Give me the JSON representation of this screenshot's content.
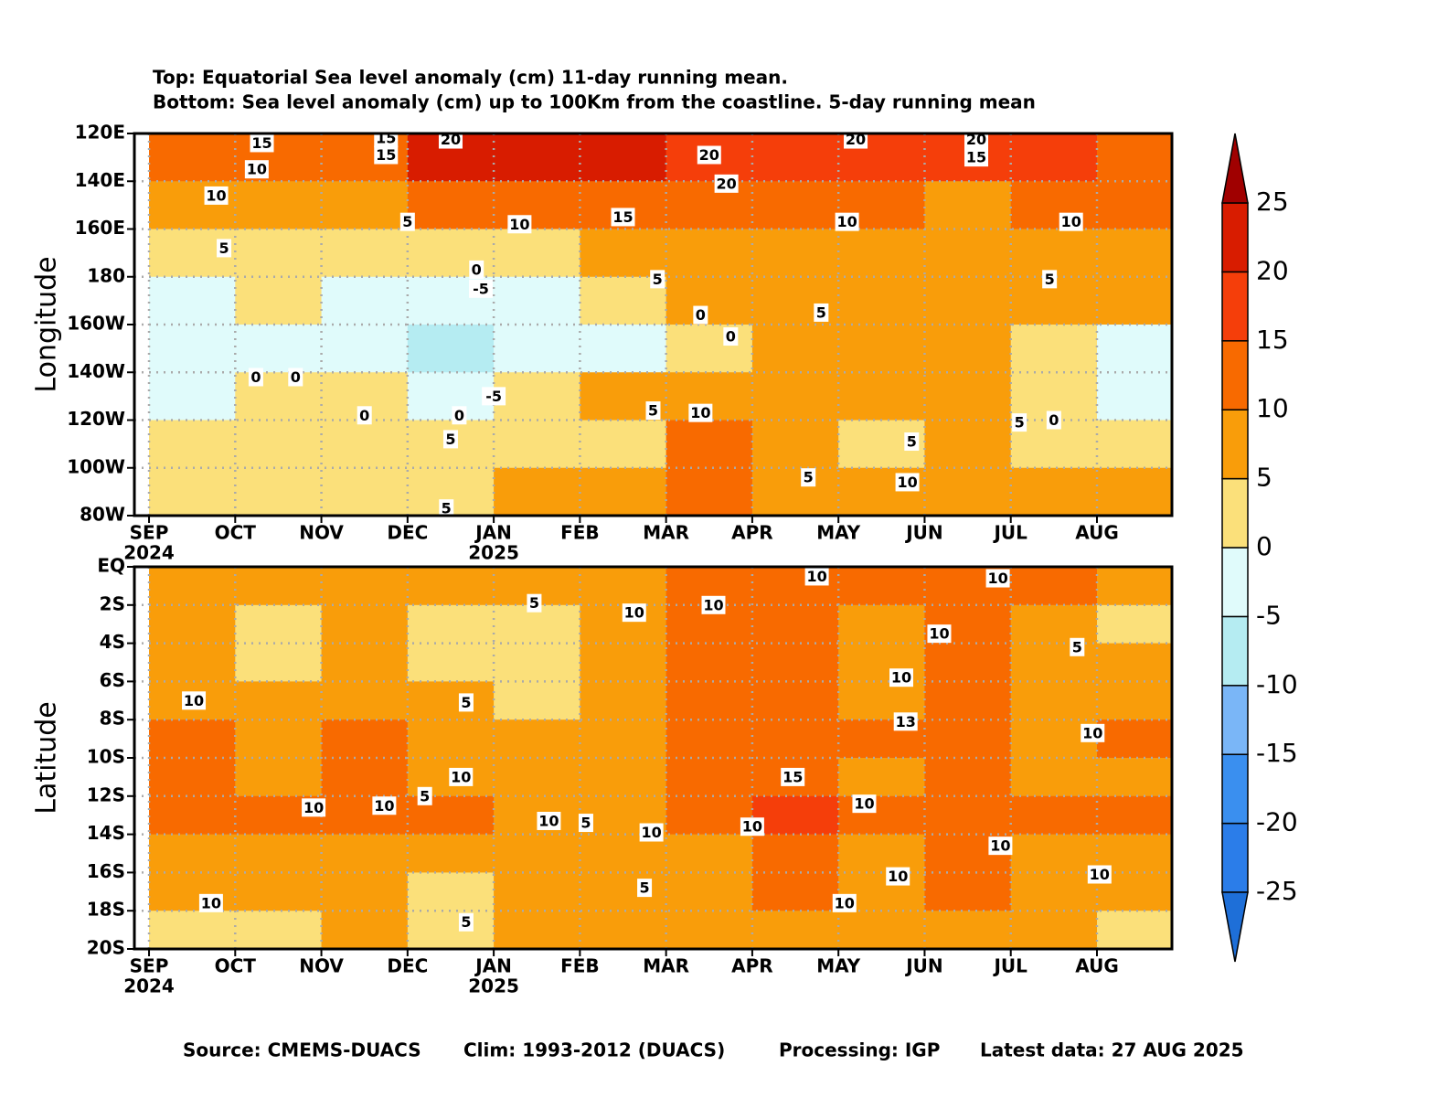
{
  "title": [
    "Top: Equatorial Sea level anomaly (cm) 11-day running mean.",
    "Bottom: Sea level anomaly (cm) up to 100Km from the coastline. 5-day running mean"
  ],
  "footer": [
    "Source: CMEMS-DUACS",
    "Clim: 1993-2012 (DUACS)",
    "Processing: IGP",
    "Latest data: 27 AUG 2025"
  ],
  "colorbar": {
    "levels": [
      -25,
      -20,
      -15,
      -10,
      -5,
      0,
      5,
      10,
      15,
      20,
      25
    ],
    "colors": [
      "#2b7de9",
      "#3a8fef",
      "#7ab6f7",
      "#b5ecf2",
      "#e0fbfb",
      "#fbe07a",
      "#f99d0a",
      "#f86a00",
      "#f53e0a",
      "#d81c00"
    ],
    "under_color": "#1e6fd8",
    "over_color": "#a00000"
  },
  "chart_data": [
    {
      "type": "heatmap",
      "ylabel": "Longitude",
      "xlim": [
        -0.17,
        11.87
      ],
      "xticks": [
        {
          "value": 0,
          "label": "SEP"
        },
        {
          "value": 1,
          "label": "OCT"
        },
        {
          "value": 2,
          "label": "NOV"
        },
        {
          "value": 3,
          "label": "DEC"
        },
        {
          "value": 4,
          "label": "JAN"
        },
        {
          "value": 5,
          "label": "FEB"
        },
        {
          "value": 6,
          "label": "MAR"
        },
        {
          "value": 7,
          "label": "APR"
        },
        {
          "value": 8,
          "label": "MAY"
        },
        {
          "value": 9,
          "label": "JUN"
        },
        {
          "value": 10,
          "label": "JUL"
        },
        {
          "value": 11,
          "label": "AUG"
        }
      ],
      "xyears": [
        {
          "value": 0,
          "label": "2024"
        },
        {
          "value": 4,
          "label": "2025"
        }
      ],
      "ylim": [
        280,
        120
      ],
      "yticks": [
        {
          "value": 120,
          "label": "120E"
        },
        {
          "value": 140,
          "label": "140E"
        },
        {
          "value": 160,
          "label": "160E"
        },
        180,
        {
          "value": 200,
          "label": "160W"
        },
        {
          "value": 220,
          "label": "140W"
        },
        {
          "value": 240,
          "label": "120W"
        },
        {
          "value": 260,
          "label": "100W"
        },
        {
          "value": 280,
          "label": "80W"
        }
      ],
      "grid": true,
      "x": [
        0.5,
        1.5,
        2.5,
        3.5,
        4.5,
        5.5,
        6.5,
        7.5,
        8.5,
        9.5,
        10.5,
        11.5
      ],
      "y": [
        130,
        150,
        170,
        190,
        210,
        230,
        250,
        270
      ],
      "values": [
        [
          12,
          12,
          14,
          20,
          21,
          20,
          19,
          18,
          18,
          17,
          15,
          14
        ],
        [
          8,
          9,
          8,
          12,
          13,
          14,
          12,
          10,
          10,
          9,
          10,
          10
        ],
        [
          4,
          4,
          3,
          2,
          3,
          5,
          7,
          8,
          8,
          8,
          8,
          6
        ],
        [
          -2,
          2,
          -2,
          -4,
          -1,
          3,
          7,
          8,
          8,
          7,
          5,
          6
        ],
        [
          -3,
          -1,
          -1,
          -6,
          -3,
          -1,
          3,
          7,
          7,
          8,
          3,
          -2
        ],
        [
          -2,
          0,
          1,
          -3,
          2,
          5,
          9,
          7,
          6,
          7,
          4,
          -2
        ],
        [
          3,
          2,
          3,
          3,
          3,
          4,
          11,
          5,
          3,
          6,
          3,
          3
        ],
        [
          3,
          3,
          2,
          4,
          5,
          5,
          12,
          9,
          6,
          9,
          6,
          6
        ]
      ],
      "annotations": [
        {
          "value": 15,
          "x": 1.31,
          "y": 124
        },
        {
          "value": 15,
          "x": 2.75,
          "y": 122
        },
        {
          "value": 20,
          "x": 3.5,
          "y": 122.5
        },
        {
          "value": 15,
          "x": 2.75,
          "y": 129
        },
        {
          "value": 20,
          "x": 6.5,
          "y": 129
        },
        {
          "value": 20,
          "x": 6.7,
          "y": 141
        },
        {
          "value": 20,
          "x": 8.2,
          "y": 122.5
        },
        {
          "value": 20,
          "x": 9.6,
          "y": 122.5
        },
        {
          "value": 15,
          "x": 9.6,
          "y": 130
        },
        {
          "value": 10,
          "x": 1.25,
          "y": 135
        },
        {
          "value": 10,
          "x": 0.78,
          "y": 146
        },
        {
          "value": 15,
          "x": 5.5,
          "y": 155
        },
        {
          "value": 10,
          "x": 4.3,
          "y": 158
        },
        {
          "value": 5,
          "x": 3.0,
          "y": 157
        },
        {
          "value": 10,
          "x": 8.1,
          "y": 157
        },
        {
          "value": 10,
          "x": 10.7,
          "y": 157
        },
        {
          "value": 5,
          "x": 0.87,
          "y": 168
        },
        {
          "value": 0,
          "x": 3.8,
          "y": 177
        },
        {
          "value": -5,
          "x": 3.85,
          "y": 185
        },
        {
          "value": 5,
          "x": 5.9,
          "y": 181
        },
        {
          "value": 0,
          "x": 6.4,
          "y": 196
        },
        {
          "value": 0,
          "x": 6.75,
          "y": 205
        },
        {
          "value": 5,
          "x": 7.8,
          "y": 195
        },
        {
          "value": 5,
          "x": 10.45,
          "y": 181
        },
        {
          "value": 0,
          "x": 1.24,
          "y": 222
        },
        {
          "value": 0,
          "x": 1.7,
          "y": 222
        },
        {
          "value": -5,
          "x": 4.0,
          "y": 230
        },
        {
          "value": 0,
          "x": 2.5,
          "y": 238
        },
        {
          "value": 0,
          "x": 3.6,
          "y": 238
        },
        {
          "value": 5,
          "x": 5.85,
          "y": 236
        },
        {
          "value": 10,
          "x": 6.4,
          "y": 237
        },
        {
          "value": 5,
          "x": 3.5,
          "y": 248
        },
        {
          "value": 5,
          "x": 7.65,
          "y": 264
        },
        {
          "value": 5,
          "x": 8.85,
          "y": 249
        },
        {
          "value": 10,
          "x": 8.8,
          "y": 266
        },
        {
          "value": 5,
          "x": 10.1,
          "y": 241
        },
        {
          "value": 0,
          "x": 10.5,
          "y": 240
        },
        {
          "value": 5,
          "x": 3.45,
          "y": 277
        }
      ]
    },
    {
      "type": "heatmap",
      "ylabel": "Latitude",
      "xlim": [
        -0.17,
        11.87
      ],
      "xticks": [
        {
          "value": 0,
          "label": "SEP"
        },
        {
          "value": 1,
          "label": "OCT"
        },
        {
          "value": 2,
          "label": "NOV"
        },
        {
          "value": 3,
          "label": "DEC"
        },
        {
          "value": 4,
          "label": "JAN"
        },
        {
          "value": 5,
          "label": "FEB"
        },
        {
          "value": 6,
          "label": "MAR"
        },
        {
          "value": 7,
          "label": "APR"
        },
        {
          "value": 8,
          "label": "MAY"
        },
        {
          "value": 9,
          "label": "JUN"
        },
        {
          "value": 10,
          "label": "JUL"
        },
        {
          "value": 11,
          "label": "AUG"
        }
      ],
      "xyears": [
        {
          "value": 0,
          "label": "2024"
        },
        {
          "value": 4,
          "label": "2025"
        }
      ],
      "ylim": [
        -20,
        0
      ],
      "yticks": [
        {
          "value": 0,
          "label": "EQ"
        },
        {
          "value": -2,
          "label": "2S"
        },
        {
          "value": -4,
          "label": "4S"
        },
        {
          "value": -6,
          "label": "6S"
        },
        {
          "value": -8,
          "label": "8S"
        },
        {
          "value": -10,
          "label": "10S"
        },
        {
          "value": -12,
          "label": "12S"
        },
        {
          "value": -14,
          "label": "14S"
        },
        {
          "value": -16,
          "label": "16S"
        },
        {
          "value": -18,
          "label": "18S"
        },
        {
          "value": -20,
          "label": "20S"
        }
      ],
      "grid": true,
      "x": [
        0.5,
        1.5,
        2.5,
        3.5,
        4.5,
        5.5,
        6.5,
        7.5,
        8.5,
        9.5,
        10.5,
        11.5
      ],
      "y": [
        -1,
        -3,
        -5,
        -7,
        -9,
        -11,
        -13,
        -15,
        -17,
        -19
      ],
      "values": [
        [
          7,
          6,
          8,
          5,
          6,
          9,
          12,
          12,
          10,
          11,
          10,
          7
        ],
        [
          7,
          4,
          8,
          4,
          3,
          7,
          11,
          12,
          9,
          11,
          9,
          4
        ],
        [
          6,
          4,
          7,
          4,
          3,
          6,
          11,
          12,
          8,
          10,
          8,
          6
        ],
        [
          6,
          6,
          8,
          5,
          4,
          6,
          11,
          12,
          9,
          11,
          8,
          7
        ],
        [
          10,
          7,
          11,
          7,
          5,
          6,
          11,
          14,
          10,
          12,
          9,
          10
        ],
        [
          10,
          7,
          11,
          9,
          6,
          6,
          10,
          13,
          9,
          13,
          9,
          9
        ],
        [
          11,
          10,
          12,
          11,
          9,
          8,
          11,
          16,
          12,
          14,
          11,
          12
        ],
        [
          7,
          7,
          8,
          6,
          5,
          8,
          9,
          11,
          9,
          11,
          9,
          8
        ],
        [
          7,
          6,
          7,
          4,
          6,
          7,
          8,
          10,
          9,
          10,
          8,
          8
        ],
        [
          4,
          4,
          5,
          1,
          5,
          6,
          8,
          7,
          7,
          8,
          7,
          4
        ]
      ],
      "annotations": [
        {
          "value": 10,
          "x": 0.52,
          "y": -7
        },
        {
          "value": 5,
          "x": 4.47,
          "y": -1.9
        },
        {
          "value": 10,
          "x": 5.63,
          "y": -2.4
        },
        {
          "value": 10,
          "x": 6.55,
          "y": -2
        },
        {
          "value": 10,
          "x": 7.75,
          "y": -0.5
        },
        {
          "value": 10,
          "x": 9.85,
          "y": -0.6
        },
        {
          "value": 10,
          "x": 9.17,
          "y": -3.5
        },
        {
          "value": 5,
          "x": 10.77,
          "y": -4.2
        },
        {
          "value": 10,
          "x": 8.73,
          "y": -5.8
        },
        {
          "value": 5,
          "x": 3.68,
          "y": -7.1
        },
        {
          "value": 13,
          "x": 8.78,
          "y": -8.1
        },
        {
          "value": 10,
          "x": 10.95,
          "y": -8.7
        },
        {
          "value": 15,
          "x": 7.47,
          "y": -11
        },
        {
          "value": 10,
          "x": 3.62,
          "y": -11
        },
        {
          "value": 5,
          "x": 3.2,
          "y": -12
        },
        {
          "value": 10,
          "x": 1.91,
          "y": -12.6
        },
        {
          "value": 10,
          "x": 2.73,
          "y": -12.5
        },
        {
          "value": 10,
          "x": 4.64,
          "y": -13.3
        },
        {
          "value": 5,
          "x": 5.07,
          "y": -13.4
        },
        {
          "value": 10,
          "x": 5.83,
          "y": -13.9
        },
        {
          "value": 10,
          "x": 7.0,
          "y": -13.6
        },
        {
          "value": 10,
          "x": 8.3,
          "y": -12.4
        },
        {
          "value": 10,
          "x": 9.88,
          "y": -14.6
        },
        {
          "value": 10,
          "x": 8.69,
          "y": -16.2
        },
        {
          "value": 5,
          "x": 5.75,
          "y": -16.8
        },
        {
          "value": 10,
          "x": 0.72,
          "y": -17.6
        },
        {
          "value": 10,
          "x": 8.07,
          "y": -17.6
        },
        {
          "value": 10,
          "x": 11.03,
          "y": -16.1
        },
        {
          "value": 5,
          "x": 3.68,
          "y": -18.6
        }
      ]
    }
  ]
}
